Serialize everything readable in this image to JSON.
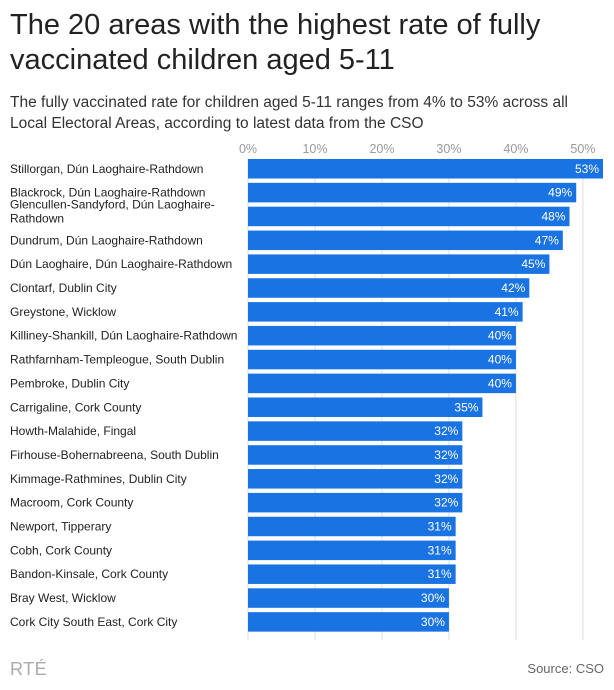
{
  "header": {
    "title": "The 20 areas with the highest rate of fully vaccinated children aged 5-11",
    "subtitle": "The fully vaccinated rate for children aged 5-11 ranges from 4% to 53% across all Local Electoral Areas, according to latest data from the CSO"
  },
  "footer": {
    "logo": "RTÉ",
    "source": "Source: CSO"
  },
  "colors": {
    "bar": "#1a73e3"
  },
  "chart_data": {
    "type": "bar",
    "orientation": "horizontal",
    "title": "The 20 areas with the highest rate of fully vaccinated children aged 5-11",
    "subtitle": "The fully vaccinated rate for children aged 5-11 ranges from 4% to 53% across all Local Electoral Areas, according to latest data from the CSO",
    "xlim": [
      0,
      53
    ],
    "ticks": [
      0,
      10,
      20,
      30,
      40,
      50
    ],
    "tick_labels": [
      "0%",
      "10%",
      "20%",
      "30%",
      "40%",
      "50%"
    ],
    "grid": true,
    "tick_position": "top",
    "categories": [
      "Stillorgan, Dún Laoghaire-Rathdown",
      "Blackrock, Dún Laoghaire-Rathdown",
      "Glencullen-Sandyford, Dún Laoghaire-Rathdown",
      "Dundrum, Dún Laoghaire-Rathdown",
      "Dún Laoghaire, Dún Laoghaire-Rathdown",
      "Clontarf, Dublin City",
      "Greystone, Wicklow",
      "Killiney-Shankill, Dún Laoghaire-Rathdown",
      "Rathfarnham-Templeogue, South Dublin",
      "Pembroke, Dublin City",
      "Carrigaline, Cork County",
      "Howth-Malahide, Fingal",
      "Firhouse-Bohernabreena, South Dublin",
      "Kimmage-Rathmines, Dublin City",
      "Macroom, Cork County",
      "Newport, Tipperary",
      "Cobh, Cork County",
      "Bandon-Kinsale, Cork County",
      "Bray West, Wicklow",
      "Cork City South East, Cork City"
    ],
    "category_lines": [
      [
        "Stillorgan, Dún Laoghaire-Rathdown"
      ],
      [
        "Blackrock, Dún Laoghaire-Rathdown"
      ],
      [
        "Glencullen-Sandyford, Dún Laoghaire-",
        "Rathdown"
      ],
      [
        "Dundrum, Dún Laoghaire-Rathdown"
      ],
      [
        "Dún Laoghaire, Dún Laoghaire-Rathdown"
      ],
      [
        "Clontarf, Dublin City"
      ],
      [
        "Greystone, Wicklow"
      ],
      [
        "Killiney-Shankill, Dún Laoghaire-Rathdown"
      ],
      [
        "Rathfarnham-Templeogue, South Dublin"
      ],
      [
        "Pembroke, Dublin City"
      ],
      [
        "Carrigaline, Cork County"
      ],
      [
        "Howth-Malahide, Fingal"
      ],
      [
        "Firhouse-Bohernabreena, South Dublin"
      ],
      [
        "Kimmage-Rathmines, Dublin City"
      ],
      [
        "Macroom, Cork County"
      ],
      [
        "Newport, Tipperary"
      ],
      [
        "Cobh, Cork County"
      ],
      [
        "Bandon-Kinsale, Cork County"
      ],
      [
        "Bray West, Wicklow"
      ],
      [
        "Cork City South East, Cork City"
      ]
    ],
    "values": [
      53,
      49,
      48,
      47,
      45,
      42,
      41,
      40,
      40,
      40,
      35,
      32,
      32,
      32,
      32,
      31,
      31,
      31,
      30,
      30
    ],
    "value_labels": [
      "53%",
      "49%",
      "48%",
      "47%",
      "45%",
      "42%",
      "41%",
      "40%",
      "40%",
      "40%",
      "35%",
      "32%",
      "32%",
      "32%",
      "32%",
      "31%",
      "31%",
      "31%",
      "30%",
      "30%"
    ]
  }
}
